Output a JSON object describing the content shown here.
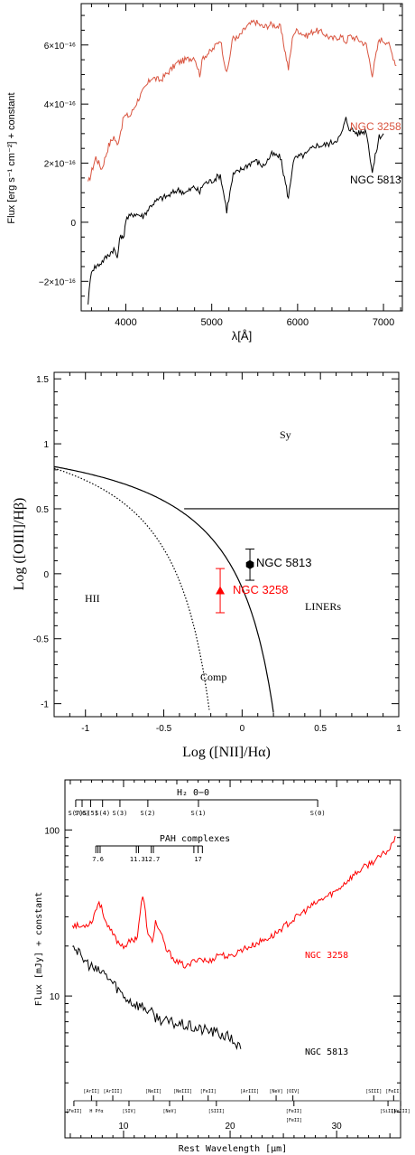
{
  "chart_data": [
    {
      "type": "line",
      "ylabel": "Flux [erg s⁻¹ cm⁻²] + constant",
      "xlabel": "λ[Å]",
      "xlim": [
        3480,
        7220
      ],
      "ylim": [
        -3e-16,
        7.4e-16
      ],
      "x_ticks": [
        "4000",
        "5000",
        "6000",
        "7000"
      ],
      "y_ticks": [
        "6×10⁻¹⁶",
        "4×10⁻¹⁶",
        "2×10⁻¹⁶",
        "0",
        "−2×10⁻¹⁶"
      ],
      "colors": {
        "NGC 3258": "#d9543f",
        "NGC 5813": "#000000"
      },
      "series": [
        {
          "name": "NGC 3258",
          "x": [
            3560,
            3650,
            3720,
            3800,
            3860,
            3900,
            3940,
            3980,
            4050,
            4150,
            4300,
            4400,
            4500,
            4600,
            4700,
            4800,
            4860,
            4900,
            5000,
            5100,
            5175,
            5250,
            5300,
            5400,
            5500,
            5600,
            5700,
            5800,
            5893,
            5950,
            6000,
            6100,
            6200,
            6300,
            6400,
            6500,
            6563,
            6600,
            6700,
            6800,
            6870,
            6950,
            7050,
            7150
          ],
          "y": [
            1.3e-16,
            2.2e-16,
            1.8e-16,
            2.6e-16,
            2.9e-16,
            2.6e-16,
            3.1e-16,
            3.6e-16,
            3.6e-16,
            4.2e-16,
            4.9e-16,
            4.8e-16,
            5.1e-16,
            5.4e-16,
            5.5e-16,
            5.6e-16,
            5e-16,
            5.6e-16,
            5.8e-16,
            6.2e-16,
            5e-16,
            6.3e-16,
            6.2e-16,
            6.6e-16,
            6.8e-16,
            6.6e-16,
            6.7e-16,
            6.6e-16,
            5.2e-16,
            6.4e-16,
            6.5e-16,
            6.3e-16,
            6.5e-16,
            6.4e-16,
            6.2e-16,
            6.3e-16,
            6.1e-16,
            6.3e-16,
            6.2e-16,
            6e-16,
            5e-16,
            6.2e-16,
            6.1e-16,
            5.3e-16
          ]
        },
        {
          "name": "NGC 5813",
          "x": [
            3560,
            3600,
            3700,
            3800,
            3860,
            3900,
            3940,
            3970,
            4000,
            4100,
            4200,
            4300,
            4400,
            4500,
            4600,
            4700,
            4800,
            4861,
            4900,
            5000,
            5100,
            5175,
            5250,
            5300,
            5400,
            5500,
            5600,
            5700,
            5800,
            5893,
            5950,
            6000,
            6100,
            6200,
            6300,
            6400,
            6500,
            6563,
            6600,
            6700,
            6800,
            6870,
            6950,
            7000
          ],
          "y": [
            -2.7e-16,
            -1.6e-16,
            -1.4e-16,
            -1.1e-16,
            -9e-17,
            -1.2e-16,
            -4e-17,
            -6e-17,
            1e-17,
            3e-17,
            2e-17,
            6e-17,
            8e-17,
            9e-17,
            1.1e-16,
            1e-16,
            1.2e-16,
            1e-16,
            1.3e-16,
            1.4e-16,
            1.6e-16,
            4e-17,
            1.6e-16,
            1.7e-16,
            1.9e-16,
            2.1e-16,
            1.9e-16,
            2.3e-16,
            2.2e-16,
            8e-17,
            2.1e-16,
            2.2e-16,
            2.3e-16,
            2.6e-16,
            2.6e-16,
            2.7e-16,
            2.9e-16,
            3.5e-16,
            3.2e-16,
            3e-16,
            3.1e-16,
            1.7e-16,
            2.9e-16,
            3e-16
          ]
        }
      ],
      "labels": [
        "NGC 3258",
        "NGC 5813"
      ]
    },
    {
      "type": "scatter",
      "xlabel": "Log ([NII]/Hα)",
      "ylabel": "Log ([OIII]/Hβ)",
      "xlim": [
        -1.2,
        1.0
      ],
      "ylim": [
        -1.1,
        1.55
      ],
      "x_ticks": [
        "-1",
        "-0.5",
        "0",
        "0.5",
        "1"
      ],
      "y_ticks": [
        "1.5",
        "1",
        "0.5",
        "0",
        "-0.5",
        "-1"
      ],
      "regions": [
        "Sy",
        "HII",
        "LINERs",
        "Comp"
      ],
      "points": [
        {
          "name": "NGC 5813",
          "x": 0.05,
          "y": 0.07,
          "yerr": 0.12,
          "color": "#000000",
          "marker": "hexagon"
        },
        {
          "name": "NGC 3258",
          "x": -0.14,
          "y": -0.13,
          "yerr": 0.17,
          "color": "#ff0000",
          "marker": "triangle"
        }
      ],
      "curves": [
        "Kewley extreme starburst line",
        "Kauffmann line",
        "Seyfert/LINER division y=0.5"
      ]
    },
    {
      "type": "line",
      "xlabel": "Rest Wavelength [μm]",
      "ylabel": "Flux [mJy] + constant",
      "xscale": "linear",
      "yscale": "log",
      "xlim": [
        4.5,
        36
      ],
      "ylim": [
        1.4,
        200
      ],
      "x_ticks": [
        "10",
        "20",
        "30"
      ],
      "y_ticks": [
        "10",
        "100"
      ],
      "h2_title": "H₂ 0−0",
      "h2_lines": [
        {
          "label": "S(7)",
          "x": 5.51
        },
        {
          "label": "S(6)",
          "x": 6.11
        },
        {
          "label": "S(5)",
          "x": 6.91
        },
        {
          "label": "S(4)",
          "x": 8.03
        },
        {
          "label": "S(3)",
          "x": 9.66
        },
        {
          "label": "S(2)",
          "x": 12.28
        },
        {
          "label": "S(1)",
          "x": 17.03
        },
        {
          "label": "S(0)",
          "x": 28.22
        }
      ],
      "pah_title": "PAH complexes",
      "pah_labels": [
        {
          "label": "7.6",
          "x": 7.6
        },
        {
          "label": "11.3",
          "x": 11.3
        },
        {
          "label": "12.7",
          "x": 12.7
        },
        {
          "label": "17",
          "x": 17.0
        }
      ],
      "pah_ticks": [
        7.4,
        7.6,
        7.8,
        11.2,
        11.4,
        12.6,
        12.8,
        16.6,
        17.0,
        17.4
      ],
      "fine_lines_top": [
        {
          "label": "[ArII]",
          "x": 6.99
        },
        {
          "label": "[ArIII]",
          "x": 8.99
        },
        {
          "label": "[NeII]",
          "x": 12.81
        },
        {
          "label": "[NeIII]",
          "x": 15.56
        },
        {
          "label": "[FeII]",
          "x": 17.94
        },
        {
          "label": "[ArIII]",
          "x": 21.83
        },
        {
          "label": "[NeV]",
          "x": 24.32
        },
        {
          "label": "[OIV]",
          "x": 25.89
        },
        {
          "label": "[SIII]",
          "x": 33.48
        },
        {
          "label": "[FeII]",
          "x": 35.35
        }
      ],
      "fine_lines_bottom": [
        {
          "label": "[FeII]",
          "x": 5.34
        },
        {
          "label": "H Pfα",
          "x": 7.46
        },
        {
          "label": "[SIV]",
          "x": 10.51
        },
        {
          "label": "[NeV]",
          "x": 14.32
        },
        {
          "label": "[SIII]",
          "x": 18.71
        },
        {
          "label": "[FeII]",
          "x": 25.99
        },
        {
          "label": "[SiII]",
          "x": 34.82
        },
        {
          "label": "[NeIII]",
          "x": 36.01
        }
      ],
      "fine_lines_mid": [
        {
          "label": "[FeII]",
          "x": 26.0
        }
      ],
      "colors": {
        "NGC 3258": "#ff0000",
        "NGC 5813": "#000000"
      },
      "series": [
        {
          "name": "NGC 3258",
          "x": [
            5.2,
            6,
            7,
            7.7,
            8.5,
            9.5,
            10,
            11,
            11.3,
            11.8,
            12.3,
            12.7,
            13,
            14,
            15,
            16,
            17,
            18,
            19,
            20,
            21,
            22,
            24,
            26,
            28,
            30,
            32,
            34,
            35,
            35.5
          ],
          "y": [
            27,
            26,
            28,
            37,
            26,
            21,
            20,
            22,
            23,
            40,
            23,
            21,
            28,
            19,
            16,
            15,
            17,
            16,
            18,
            17,
            19,
            20,
            23,
            29,
            36,
            43,
            56,
            68,
            77,
            92
          ]
        },
        {
          "name": "NGC 5813",
          "x": [
            5.2,
            6,
            7,
            7.5,
            8,
            9,
            10,
            11,
            12,
            13,
            14,
            15,
            16,
            17,
            18,
            19,
            20,
            20.5,
            21
          ],
          "y": [
            21,
            17,
            15,
            14,
            14,
            12,
            10,
            9,
            8.5,
            7.5,
            7,
            6.8,
            6.6,
            6.3,
            6.2,
            5.9,
            5.6,
            5.2,
            4.8
          ]
        }
      ],
      "labels": [
        "NGC 3258",
        "NGC 5813"
      ]
    }
  ]
}
